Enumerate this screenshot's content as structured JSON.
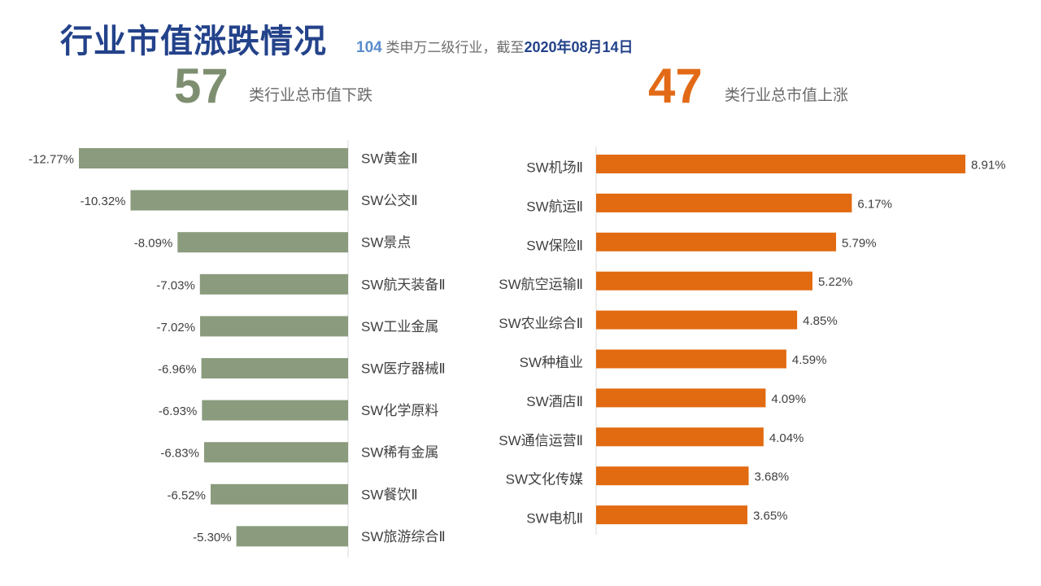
{
  "header": {
    "title": "行业市值涨跌情况",
    "subtitle_count": "104",
    "subtitle_mid": "类申万二级行业，截至",
    "subtitle_date": "2020年08月14日"
  },
  "summary": {
    "down_count": "57",
    "down_label": "类行业总市值下跌",
    "up_count": "47",
    "up_label": "类行业总市值上涨"
  },
  "colors": {
    "down_bar": "#8a9b7e",
    "up_bar": "#e26a10",
    "title": "#23428a",
    "axis": "#d9d9d9"
  },
  "chart_data": [
    {
      "type": "bar",
      "orientation": "horizontal",
      "categories": [
        "SW黄金Ⅱ",
        "SW公交Ⅱ",
        "SW景点",
        "SW航天装备Ⅱ",
        "SW工业金属",
        "SW医疗器械Ⅱ",
        "SW化学原料",
        "SW稀有金属",
        "SW餐饮Ⅱ",
        "SW旅游综合Ⅱ"
      ],
      "values": [
        -12.77,
        -10.32,
        -8.09,
        -7.03,
        -7.02,
        -6.96,
        -6.93,
        -6.83,
        -6.52,
        -5.3
      ],
      "labels": [
        "-12.77%",
        "-10.32%",
        "-8.09%",
        "-7.03%",
        "-7.02%",
        "-6.96%",
        "-6.93%",
        "-6.83%",
        "-6.52%",
        "-5.30%"
      ],
      "xlim": [
        -13.5,
        0
      ],
      "unit": "%"
    },
    {
      "type": "bar",
      "orientation": "horizontal",
      "categories": [
        "SW机场Ⅱ",
        "SW航运Ⅱ",
        "SW保险Ⅱ",
        "SW航空运输Ⅱ",
        "SW农业综合Ⅱ",
        "SW种植业",
        "SW酒店Ⅱ",
        "SW通信运营Ⅱ",
        "SW文化传媒",
        "SW电机Ⅱ"
      ],
      "values": [
        8.91,
        6.17,
        5.79,
        5.22,
        4.85,
        4.59,
        4.09,
        4.04,
        3.68,
        3.65
      ],
      "labels": [
        "8.91%",
        "6.17%",
        "5.79%",
        "5.22%",
        "4.85%",
        "4.59%",
        "4.09%",
        "4.04%",
        "3.68%",
        "3.65%"
      ],
      "xlim": [
        0,
        9
      ],
      "unit": "%"
    }
  ]
}
